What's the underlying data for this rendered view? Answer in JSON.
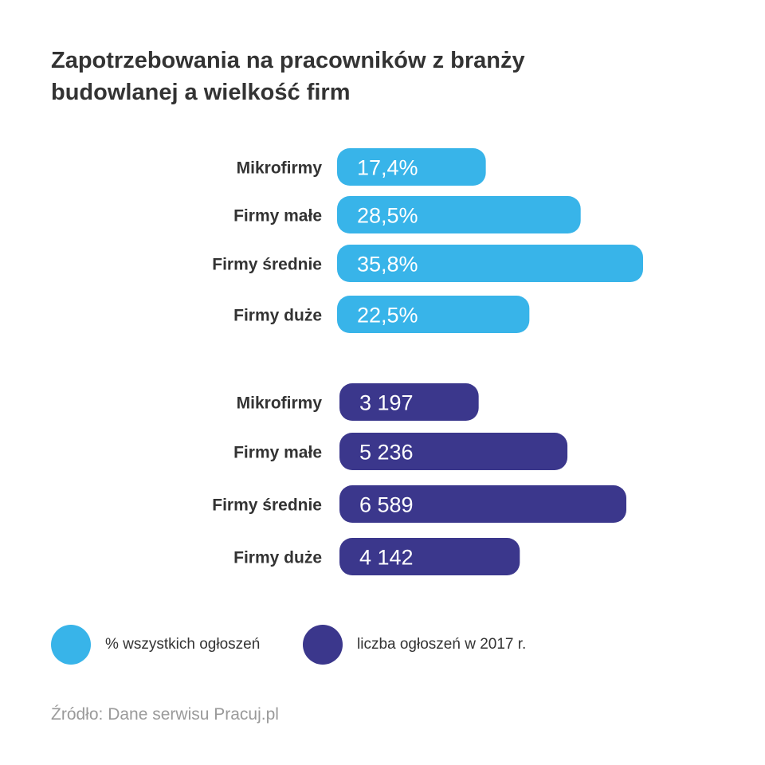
{
  "title": [
    "Zapotrzebowania na pracowników z branży",
    "budowlanej a wielkość firm"
  ],
  "colors": {
    "percent": "#38b4e9",
    "count": "#3b378c"
  },
  "chart_data": [
    {
      "type": "bar",
      "orientation": "horizontal",
      "series_name": "% wszystkich ogłoszeń",
      "categories": [
        "Mikrofirmy",
        "Firmy małe",
        "Firmy średnie",
        "Firmy duże"
      ],
      "values": [
        17.4,
        28.5,
        35.8,
        22.5
      ],
      "data_labels": [
        "17,4%",
        "28,5%",
        "35,8%",
        "22,5%"
      ]
    },
    {
      "type": "bar",
      "orientation": "horizontal",
      "series_name": "liczba ogłoszeń w 2017 r.",
      "categories": [
        "Mikrofirmy",
        "Firmy małe",
        "Firmy średnie",
        "Firmy duże"
      ],
      "values": [
        3197,
        5236,
        6589,
        4142
      ],
      "data_labels": [
        "3 197",
        "5 236",
        "6 589",
        "4 142"
      ]
    }
  ],
  "legend": [
    {
      "label": "% wszystkich ogłoszeń",
      "color": "#38b4e9"
    },
    {
      "label": "liczba ogłoszeń w 2017 r.",
      "color": "#3b378c"
    }
  ],
  "source": "Źródło: Dane serwisu Pracuj.pl"
}
